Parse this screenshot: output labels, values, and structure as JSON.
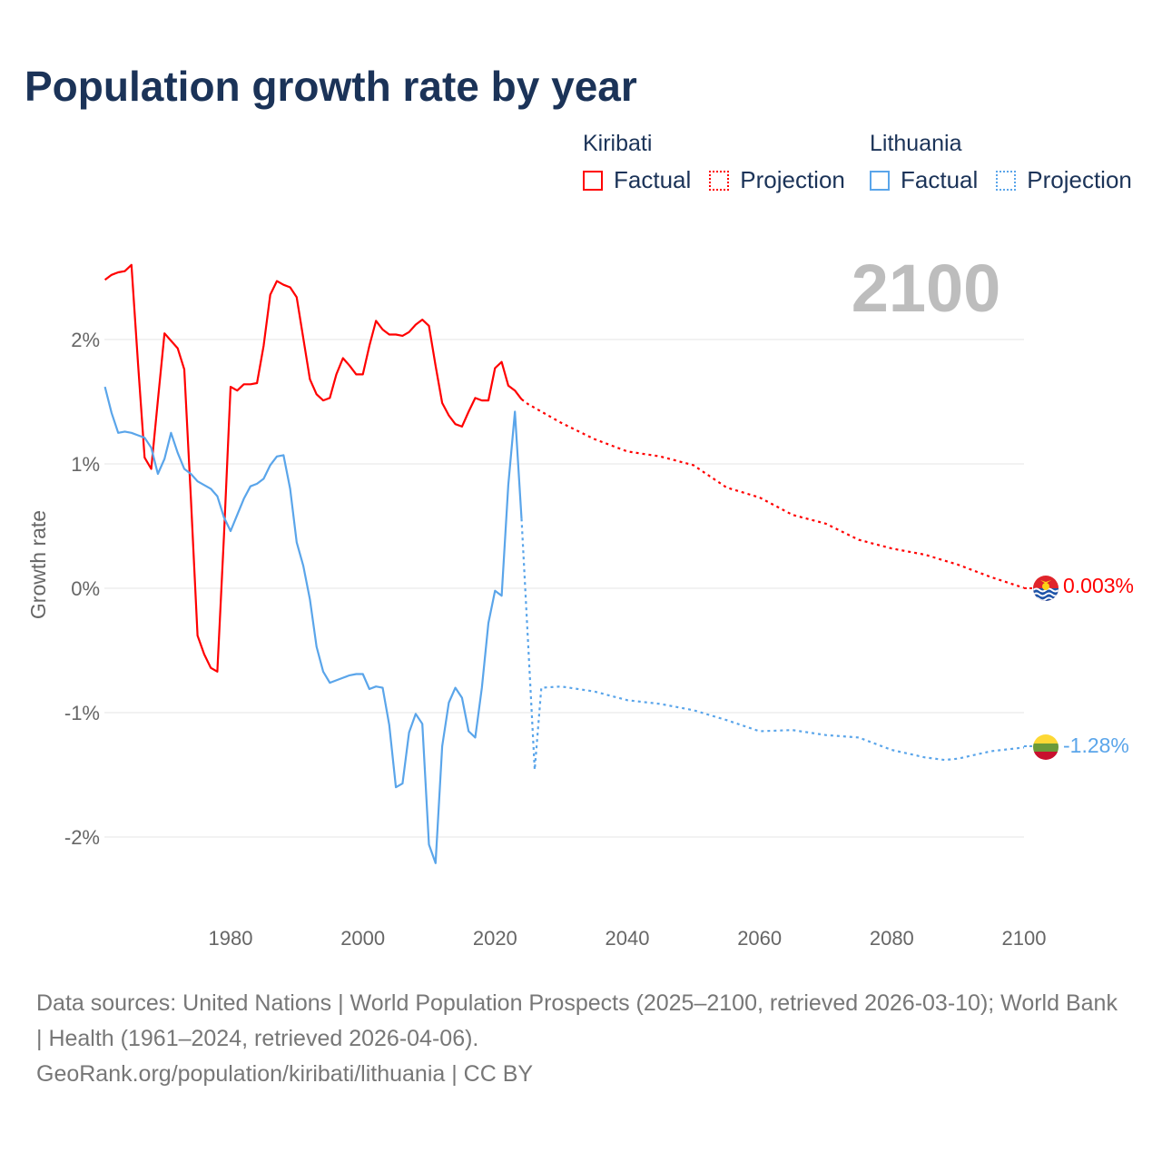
{
  "title": "Population growth rate by year",
  "legend": {
    "groups": [
      {
        "name": "Kiribati",
        "factual_label": "Factual",
        "projection_label": "Projection",
        "color": "#ff0000"
      },
      {
        "name": "Lithuania",
        "factual_label": "Factual",
        "projection_label": "Projection",
        "color": "#5aa5ea"
      }
    ]
  },
  "footer": {
    "sources": "Data sources: United Nations | World Population Prospects (2025–2100, retrieved 2026-03-10); World Bank | Health (1961–2024, retrieved 2026-04-06).",
    "credit": "GeoRank.org/population/kiribati/lithuania | CC BY"
  },
  "chart_data": {
    "type": "line",
    "title": "Population growth rate by year",
    "xlabel": "",
    "ylabel": "Growth rate",
    "year_watermark": "2100",
    "xlim": [
      1961,
      2100
    ],
    "ylim": [
      -2.6,
      2.8
    ],
    "x_ticks": [
      1980,
      2000,
      2020,
      2040,
      2060,
      2080,
      2100
    ],
    "x_tick_labels": [
      "1980",
      "2000",
      "2020",
      "2040",
      "2060",
      "2080",
      "2100"
    ],
    "y_ticks": [
      2,
      1,
      0,
      -1,
      -2
    ],
    "y_tick_labels": [
      "2%",
      "1%",
      "0%",
      "-1%",
      "-2%"
    ],
    "grid": true,
    "legend_position": "top-right",
    "series": [
      {
        "name": "Kiribati",
        "color": "#ff0000",
        "end_label": "0.003%",
        "factual": {
          "start_year": 1961,
          "values": [
            2.48,
            2.52,
            2.54,
            2.55,
            2.6,
            1.81,
            1.05,
            0.96,
            1.51,
            2.05,
            1.99,
            1.93,
            1.76,
            0.72,
            -0.38,
            -0.53,
            -0.64,
            -0.67,
            0.42,
            1.62,
            1.59,
            1.64,
            1.64,
            1.65,
            1.95,
            2.36,
            2.47,
            2.44,
            2.42,
            2.34,
            2.01,
            1.68,
            1.56,
            1.51,
            1.53,
            1.72,
            1.85,
            1.79,
            1.72,
            1.72,
            1.95,
            2.15,
            2.08,
            2.04,
            2.04,
            2.03,
            2.06,
            2.12,
            2.16,
            2.11,
            1.79,
            1.49,
            1.39,
            1.32,
            1.3,
            1.42,
            1.53,
            1.51,
            1.51,
            1.77,
            1.82,
            1.63,
            1.59,
            1.52
          ]
        },
        "projection": {
          "years": [
            2024,
            2025,
            2030,
            2035,
            2040,
            2045,
            2050,
            2055,
            2060,
            2065,
            2070,
            2075,
            2080,
            2085,
            2090,
            2095,
            2100
          ],
          "values": [
            1.52,
            1.48,
            1.33,
            1.2,
            1.1,
            1.06,
            0.99,
            0.81,
            0.73,
            0.59,
            0.52,
            0.39,
            0.32,
            0.27,
            0.19,
            0.09,
            0.003
          ]
        }
      },
      {
        "name": "Lithuania",
        "color": "#5aa5ea",
        "end_label": "-1.28%",
        "factual": {
          "start_year": 1961,
          "values": [
            1.62,
            1.41,
            1.25,
            1.26,
            1.25,
            1.23,
            1.21,
            1.13,
            0.92,
            1.04,
            1.25,
            1.09,
            0.96,
            0.92,
            0.86,
            0.83,
            0.8,
            0.74,
            0.57,
            0.46,
            0.59,
            0.72,
            0.82,
            0.84,
            0.88,
            0.99,
            1.06,
            1.07,
            0.8,
            0.37,
            0.18,
            -0.09,
            -0.47,
            -0.67,
            -0.76,
            -0.74,
            -0.72,
            -0.7,
            -0.69,
            -0.69,
            -0.81,
            -0.79,
            -0.8,
            -1.1,
            -1.6,
            -1.57,
            -1.16,
            -1.01,
            -1.09,
            -2.06,
            -2.21,
            -1.27,
            -0.92,
            -0.8,
            -0.88,
            -1.15,
            -1.2,
            -0.8,
            -0.28,
            -0.02,
            -0.06,
            0.83,
            1.42,
            0.56
          ]
        },
        "projection": {
          "years": [
            2024,
            2025,
            2026,
            2027,
            2030,
            2035,
            2040,
            2045,
            2050,
            2055,
            2060,
            2065,
            2070,
            2075,
            2080,
            2085,
            2088,
            2090,
            2095,
            2100
          ],
          "values": [
            0.56,
            -0.45,
            -1.46,
            -0.8,
            -0.79,
            -0.83,
            -0.9,
            -0.93,
            -0.98,
            -1.06,
            -1.15,
            -1.14,
            -1.18,
            -1.2,
            -1.3,
            -1.36,
            -1.38,
            -1.37,
            -1.31,
            -1.28
          ]
        }
      }
    ]
  }
}
